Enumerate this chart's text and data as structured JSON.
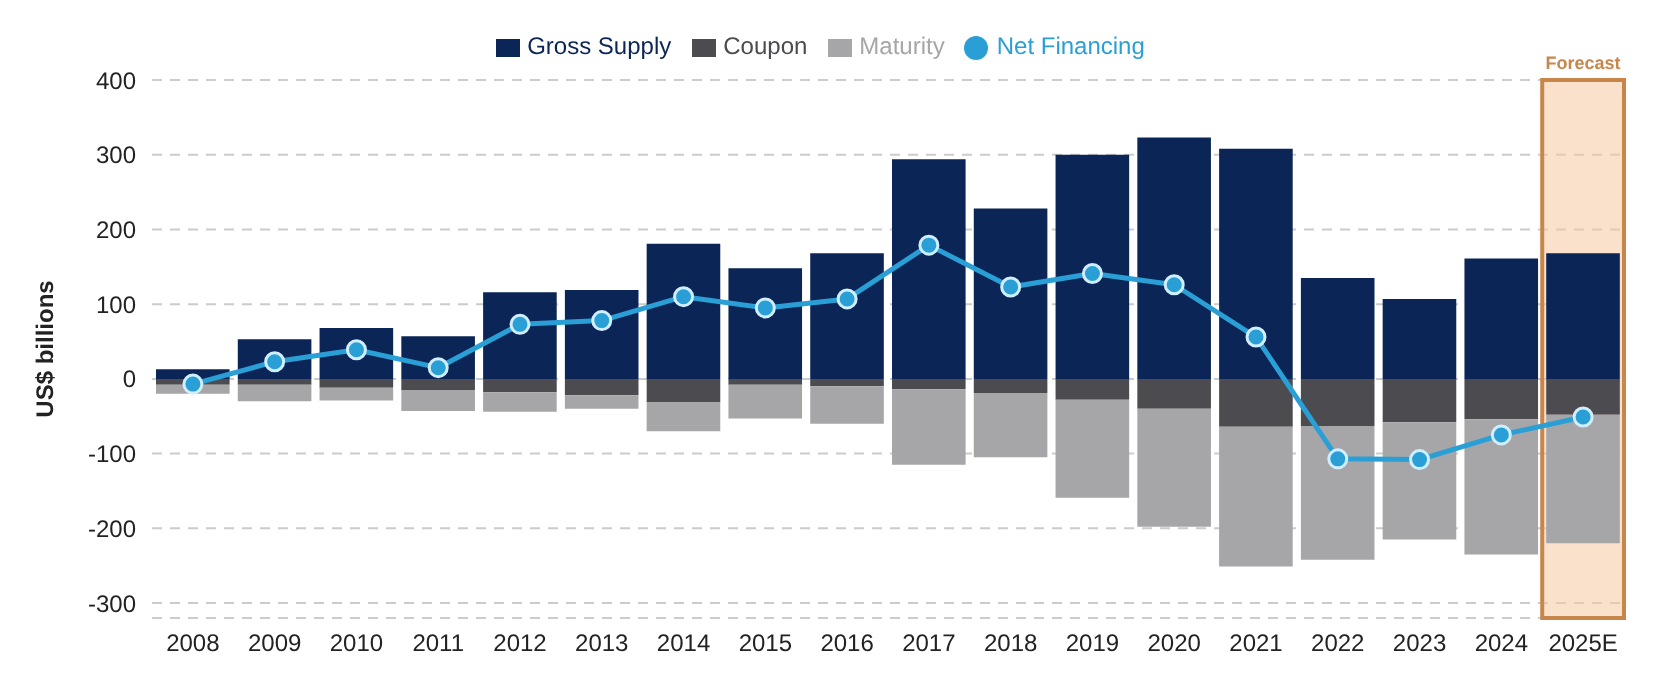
{
  "chart_data": {
    "type": "bar",
    "stacked": true,
    "categories": [
      "2008",
      "2009",
      "2010",
      "2011",
      "2012",
      "2013",
      "2014",
      "2015",
      "2016",
      "2017",
      "2018",
      "2019",
      "2020",
      "2021",
      "2022",
      "2023",
      "2024",
      "2025E"
    ],
    "series": [
      {
        "name": "Gross Supply",
        "color": "#0b2656",
        "values": [
          13,
          53,
          68,
          57,
          116,
          119,
          181,
          148,
          168,
          294,
          228,
          300,
          323,
          308,
          135,
          107,
          161,
          168
        ]
      },
      {
        "name": "Coupon",
        "color": "#4b4b50",
        "values": [
          -8,
          -8,
          -12,
          -15,
          -18,
          -22,
          -31,
          -8,
          -10,
          -14,
          -19,
          -28,
          -40,
          -64,
          -63,
          -58,
          -54,
          -48
        ]
      },
      {
        "name": "Maturity",
        "color": "#a6a6a8",
        "values": [
          -12,
          -22,
          -17,
          -28,
          -26,
          -18,
          -39,
          -45,
          -50,
          -101,
          -86,
          -131,
          -158,
          -187,
          -179,
          -157,
          -181,
          -172
        ]
      },
      {
        "name": "Net Financing",
        "type": "line",
        "color": "#2a9fd6",
        "values": [
          -7,
          23,
          39,
          15,
          73,
          78,
          110,
          95,
          107,
          179,
          123,
          141,
          126,
          56,
          -107,
          -108,
          -75,
          -51
        ]
      }
    ],
    "ylabel": "US$ billions",
    "ylim": [
      -320,
      400
    ],
    "yticks": [
      -300,
      -200,
      -100,
      0,
      100,
      200,
      300,
      400
    ],
    "grid": "y",
    "legend": "top",
    "marker": "circle",
    "bands": [
      {
        "axis": "x",
        "from": "2025E",
        "to": "2025E",
        "label": "Forecast",
        "color": "#f5c9a0"
      }
    ]
  }
}
